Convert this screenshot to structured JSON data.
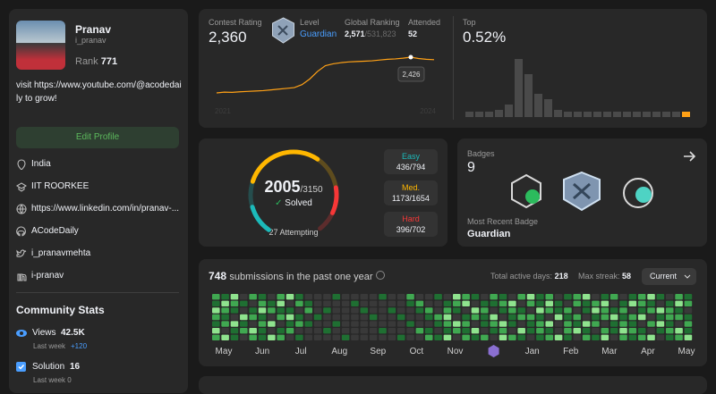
{
  "profile": {
    "name": "Pranav",
    "username": "i_pranav",
    "rank_label": "Rank",
    "rank": 771,
    "bio": "visit https://www.youtube.com/@acodedaily to grow!",
    "edit_button": "Edit Profile",
    "info": [
      "India",
      "IIT ROORKEE",
      "https://www.linkedin.com/in/pranav-...",
      "ACodeDaily",
      "i_pranavmehta",
      "i-pranav"
    ]
  },
  "community_stats": {
    "title": "Community Stats",
    "items": [
      {
        "label": "Views",
        "value": "42.5K",
        "last_week_label": "Last week",
        "last_week": "+120"
      },
      {
        "label": "Solution",
        "value": 16,
        "last_week_label": "Last week",
        "last_week": 0
      }
    ]
  },
  "contest": {
    "rating_label": "Contest Rating",
    "rating": "2,360",
    "level_label": "Level",
    "level": "Guardian",
    "ranking_label": "Global Ranking",
    "ranking": "2,571",
    "ranking_total": "/531,823",
    "attended_label": "Attended",
    "attended": 52,
    "history": [
      1480,
      1500,
      1495,
      1510,
      1520,
      1530,
      1540,
      1560,
      1580,
      1600,
      1620,
      1700,
      1850,
      2050,
      2200,
      2250,
      2280,
      2300,
      2310,
      2320,
      2330,
      2350,
      2370,
      2380,
      2400,
      2426,
      2390,
      2370,
      2360
    ],
    "tooltip": "2,426",
    "x_labels": [
      "2021",
      "2024"
    ],
    "top_label": "Top",
    "top": "0.52%",
    "top_distribution": [
      6,
      6,
      6,
      8,
      14,
      65,
      48,
      26,
      20,
      8,
      6,
      6,
      6,
      6,
      6,
      6,
      6,
      6,
      6,
      6,
      6,
      6,
      6
    ],
    "bar_color": "#4a4a4a",
    "highlight_color": "#ffa116",
    "line_color": "#ffa116"
  },
  "solved": {
    "solved": 2005,
    "total": "/3150",
    "label": "Solved",
    "attempting": "27 Attempting",
    "difficulties": [
      {
        "name": "Easy",
        "count": "436/794",
        "color": "#1cbaba"
      },
      {
        "name": "Med.",
        "count": "1173/1654",
        "color": "#ffb700"
      },
      {
        "name": "Hard",
        "count": "396/702",
        "color": "#f63737"
      }
    ]
  },
  "badges": {
    "label": "Badges",
    "count": 9,
    "recent_label": "Most Recent Badge",
    "recent": "Guardian"
  },
  "submissions": {
    "count": 748,
    "text": "submissions in the past one year",
    "active_label": "Total active days:",
    "active": 218,
    "streak_label": "Max streak:",
    "streak": 58,
    "dropdown": "Current",
    "months": [
      "May",
      "Jun",
      "Jul",
      "Aug",
      "Sep",
      "Oct",
      "Nov",
      null,
      "Jan",
      "Feb",
      "Mar",
      "Apr",
      "May"
    ],
    "level_colors": [
      "#393939",
      "#1f6f32",
      "#40a851",
      "#8fe38e"
    ],
    "levels": [
      [
        2,
        1,
        3,
        0,
        2,
        1,
        0,
        2,
        3,
        1,
        0,
        0,
        0,
        1,
        0,
        0,
        0,
        0,
        1,
        0,
        0,
        2,
        0,
        0,
        1,
        0,
        3,
        2,
        1,
        0,
        2,
        1,
        0,
        2,
        3,
        1,
        2,
        0,
        1,
        2,
        3,
        0,
        1,
        2,
        0,
        1,
        2,
        3,
        1,
        0,
        2,
        1
      ],
      [
        1,
        3,
        2,
        1,
        0,
        2,
        1,
        3,
        0,
        2,
        1,
        0,
        0,
        0,
        0,
        1,
        0,
        0,
        0,
        0,
        0,
        1,
        2,
        0,
        0,
        1,
        2,
        3,
        0,
        1,
        1,
        2,
        3,
        0,
        2,
        1,
        3,
        1,
        0,
        2,
        1,
        2,
        3,
        0,
        1,
        3,
        2,
        1,
        0,
        1,
        3,
        2
      ],
      [
        3,
        2,
        1,
        0,
        1,
        3,
        2,
        1,
        1,
        0,
        2,
        0,
        1,
        0,
        0,
        0,
        1,
        0,
        0,
        1,
        0,
        0,
        1,
        2,
        0,
        2,
        1,
        0,
        3,
        2,
        0,
        1,
        2,
        1,
        0,
        3,
        2,
        1,
        2,
        0,
        1,
        3,
        2,
        1,
        2,
        0,
        1,
        2,
        3,
        2,
        1,
        0
      ],
      [
        2,
        1,
        0,
        3,
        2,
        1,
        0,
        2,
        3,
        1,
        0,
        1,
        0,
        0,
        0,
        0,
        0,
        1,
        0,
        0,
        1,
        0,
        0,
        1,
        2,
        3,
        0,
        1,
        2,
        1,
        3,
        0,
        1,
        2,
        2,
        1,
        0,
        3,
        1,
        2,
        0,
        1,
        2,
        3,
        1,
        2,
        3,
        0,
        1,
        2,
        2,
        1
      ],
      [
        1,
        2,
        3,
        1,
        0,
        2,
        3,
        0,
        1,
        2,
        1,
        0,
        0,
        1,
        0,
        0,
        0,
        0,
        0,
        0,
        0,
        1,
        0,
        0,
        1,
        2,
        3,
        2,
        0,
        1,
        2,
        3,
        1,
        0,
        1,
        2,
        3,
        0,
        2,
        1,
        3,
        2,
        0,
        1,
        2,
        1,
        0,
        2,
        3,
        1,
        0,
        2
      ],
      [
        3,
        0,
        1,
        2,
        3,
        1,
        0,
        1,
        2,
        0,
        0,
        0,
        1,
        0,
        0,
        0,
        0,
        0,
        1,
        0,
        0,
        0,
        2,
        1,
        0,
        1,
        2,
        1,
        3,
        0,
        1,
        2,
        0,
        3,
        1,
        2,
        1,
        0,
        2,
        3,
        1,
        0,
        2,
        1,
        3,
        2,
        1,
        0,
        1,
        2,
        3,
        1
      ],
      [
        2,
        3,
        1,
        0,
        2,
        1,
        3,
        2,
        0,
        1,
        0,
        0,
        0,
        0,
        1,
        0,
        0,
        0,
        0,
        0,
        1,
        0,
        0,
        2,
        1,
        3,
        0,
        2,
        1,
        2,
        0,
        3,
        2,
        1,
        0,
        1,
        2,
        3,
        1,
        0,
        2,
        1,
        3,
        0,
        2,
        1,
        2,
        3,
        0,
        1,
        2,
        3
      ]
    ]
  }
}
